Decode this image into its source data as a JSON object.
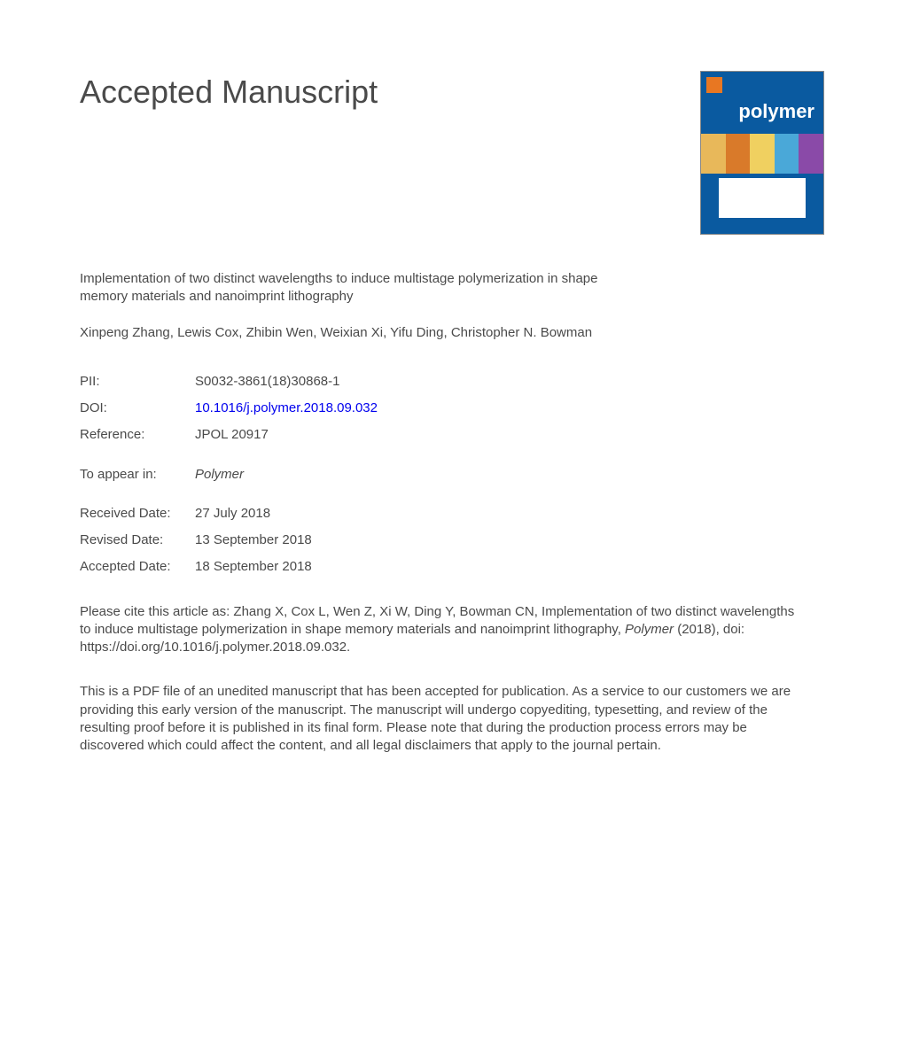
{
  "heading": "Accepted Manuscript",
  "journal_cover": {
    "title": "polymer",
    "bg_color": "#0a5aa0",
    "logo_color": "#e87722",
    "band_colors": [
      "#e8b85a",
      "#d97a2a",
      "#f0d060",
      "#4aa8d8",
      "#8a4aa8"
    ]
  },
  "article_title": "Implementation of two distinct wavelengths to induce multistage polymerization in shape memory materials and nanoimprint lithography",
  "authors": "Xinpeng Zhang, Lewis Cox, Zhibin Wen, Weixian Xi, Yifu Ding, Christopher N. Bowman",
  "meta": {
    "pii_label": "PII:",
    "pii_value": "S0032-3861(18)30868-1",
    "doi_label": "DOI:",
    "doi_value": "10.1016/j.polymer.2018.09.032",
    "reference_label": "Reference:",
    "reference_value": "JPOL 20917",
    "appear_label": "To appear in:",
    "appear_value": "Polymer",
    "received_label": "Received Date:",
    "received_value": "27 July 2018",
    "revised_label": "Revised Date:",
    "revised_value": "13 September 2018",
    "accepted_label": "Accepted Date:",
    "accepted_value": "18 September 2018"
  },
  "citation": {
    "prefix": "Please cite this article as: Zhang X, Cox L, Wen Z, Xi W, Ding Y, Bowman CN, Implementation of two distinct wavelengths to induce multistage polymerization in shape memory materials and nanoimprint lithography, ",
    "journal": "Polymer",
    "suffix": " (2018), doi: https://doi.org/10.1016/j.polymer.2018.09.032."
  },
  "disclaimer": "This is a PDF file of an unedited manuscript that has been accepted for publication. As a service to our customers we are providing this early version of the manuscript. The manuscript will undergo copyediting, typesetting, and review of the resulting proof before it is published in its final form. Please note that during the production process errors may be discovered which could affect the content, and all legal disclaimers that apply to the journal pertain."
}
